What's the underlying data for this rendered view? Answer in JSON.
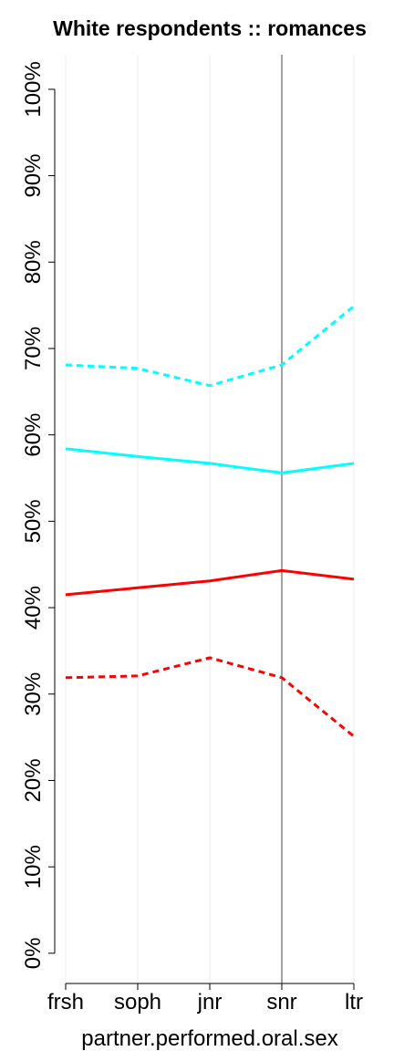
{
  "chart_data": {
    "type": "line",
    "title": "White respondents :: romances",
    "xlabel": "partner.performed.oral.sex",
    "ylabel": "",
    "categories": [
      "frsh",
      "soph",
      "jnr",
      "snr",
      "ltr"
    ],
    "ylim": [
      -0.035,
      1.04
    ],
    "yticks": [
      0,
      0.1,
      0.2,
      0.3,
      0.4,
      0.5,
      0.6,
      0.7,
      0.8,
      0.9,
      1.0
    ],
    "ytick_labels": [
      "0%",
      "10%",
      "20%",
      "30%",
      "40%",
      "50%",
      "60%",
      "70%",
      "80%",
      "90%",
      "100%"
    ],
    "reference_line_category": "snr",
    "grid": "vertical",
    "series": [
      {
        "color": "#00FFFF",
        "style": "dashed",
        "values": [
          0.681,
          0.677,
          0.657,
          0.681,
          0.749
        ]
      },
      {
        "color": "#00FFFF",
        "style": "solid",
        "values": [
          0.584,
          0.575,
          0.567,
          0.556,
          0.567
        ]
      },
      {
        "color": "#FF0000",
        "style": "solid",
        "values": [
          0.415,
          0.423,
          0.431,
          0.443,
          0.433
        ]
      },
      {
        "color": "#FF0000",
        "style": "dashed",
        "values": [
          0.319,
          0.321,
          0.342,
          0.319,
          0.251
        ]
      }
    ]
  }
}
